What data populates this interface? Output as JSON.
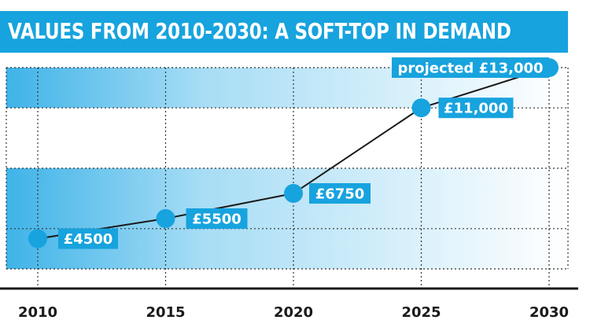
{
  "colors": {
    "accent": "#17a3de",
    "line": "#1a1a1a"
  },
  "chart_data": {
    "type": "line",
    "title": "VALUES FROM 2010-2030: A SOFT-TOP IN DEMAND",
    "x": [
      2010,
      2015,
      2020,
      2025,
      2030
    ],
    "tick_labels": [
      "2010",
      "2015",
      "2020",
      "2025",
      "2030"
    ],
    "xlim": [
      2010,
      2030
    ],
    "ylim": [
      3000,
      13000
    ],
    "grid": true,
    "series": [
      {
        "values": [
          4500,
          5500,
          6750,
          11000,
          13000
        ],
        "labels": [
          "£4500",
          "£5500",
          "£6750",
          "£11,000",
          "projected £13,000"
        ]
      }
    ]
  }
}
